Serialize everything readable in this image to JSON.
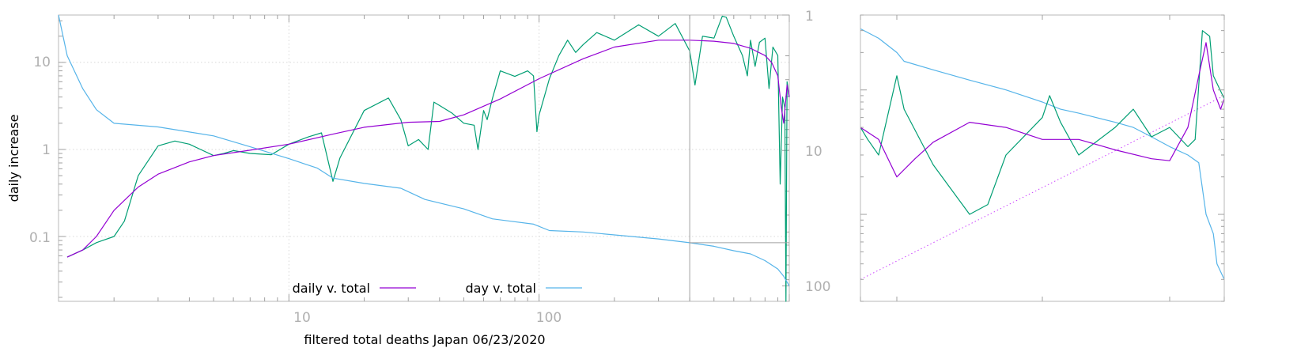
{
  "chart_data": [
    {
      "type": "line",
      "xlabel": "filtered total deaths Japan 06/23/2020",
      "ylabel": "daily increase",
      "x_scale": "log",
      "y_scale": "log",
      "y2_scale": "log",
      "y2_reversed": true,
      "xlim": [
        1.2,
        1000
      ],
      "ylim": [
        0.018,
        35
      ],
      "y2lim": [
        1,
        130
      ],
      "grid": true,
      "legend_position": "bottom-center",
      "x_tick_labels": [
        "10",
        "100"
      ],
      "y_tick_labels": [
        "0.1",
        "1",
        "10"
      ],
      "y2_tick_labels": [
        "1",
        "10",
        "100"
      ],
      "colors": {
        "daily_v_total": "#9400d3",
        "day_v_total": "#56b4e9",
        "raw_daily": "#009e73",
        "crosshair": "#a0a0a0"
      },
      "marker": {
        "x": 400,
        "y2": 48
      },
      "series": [
        {
          "name": "daily v. total",
          "axis": "y",
          "x": [
            1.3,
            1.5,
            1.7,
            2,
            2.5,
            3,
            4,
            5,
            7,
            10,
            15,
            20,
            30,
            40,
            50,
            70,
            100,
            150,
            200,
            300,
            400,
            500,
            600,
            700,
            800,
            850,
            900,
            930,
            950,
            980,
            1000
          ],
          "values": [
            0.058,
            0.07,
            0.1,
            0.2,
            0.37,
            0.52,
            0.72,
            0.85,
            0.98,
            1.15,
            1.5,
            1.8,
            2.05,
            2.1,
            2.5,
            3.8,
            6.5,
            11,
            15,
            18,
            18,
            17.5,
            16.5,
            14.5,
            12,
            10,
            7,
            3,
            2,
            5.5,
            4
          ]
        },
        {
          "name": "day v. total",
          "axis": "y2",
          "x": [
            1.2,
            1.3,
            1.5,
            1.7,
            2,
            3,
            5,
            7,
            10,
            13,
            15,
            20,
            28,
            35,
            50,
            65,
            95,
            110,
            150,
            200,
            300,
            400,
            500,
            600,
            700,
            800,
            900,
            950,
            1000
          ],
          "values": [
            1,
            2,
            3.5,
            5,
            6.3,
            6.7,
            7.8,
            9.4,
            11.5,
            13.5,
            16,
            17.5,
            19,
            23,
            27,
            32,
            35,
            39,
            40,
            42,
            45,
            48,
            51,
            55,
            58,
            65,
            75,
            85,
            100
          ]
        },
        {
          "axis": "y",
          "x": [
            1.3,
            1.5,
            1.7,
            2,
            2.2,
            2.5,
            3,
            3.5,
            4,
            5,
            5.5,
            6,
            7,
            8,
            8.5,
            10,
            12,
            13.5,
            15,
            16,
            20,
            25,
            28,
            30,
            33,
            36,
            38,
            40,
            45,
            50,
            55,
            57,
            60,
            62,
            65,
            70,
            80,
            90,
            95,
            98,
            100,
            110,
            120,
            130,
            140,
            150,
            170,
            200,
            250,
            300,
            350,
            400,
            420,
            450,
            500,
            540,
            560,
            600,
            650,
            680,
            700,
            730,
            760,
            800,
            830,
            860,
            900,
            920,
            940,
            960,
            970,
            980,
            1000
          ],
          "values": [
            0.058,
            0.07,
            0.085,
            0.1,
            0.15,
            0.5,
            1.1,
            1.25,
            1.15,
            0.85,
            0.9,
            0.97,
            0.9,
            0.88,
            0.87,
            1.15,
            1.4,
            1.55,
            0.43,
            0.8,
            2.8,
            3.9,
            2.2,
            1.1,
            1.3,
            1.0,
            3.5,
            3.2,
            2.6,
            2.0,
            1.9,
            1.0,
            2.8,
            2.2,
            3.8,
            8.0,
            6.9,
            8.0,
            7.0,
            1.6,
            2.5,
            6.5,
            12,
            18,
            13,
            16,
            22,
            18,
            27,
            20,
            28,
            13.5,
            5.5,
            20,
            19,
            34,
            33,
            20,
            12,
            7,
            18,
            9,
            17,
            19,
            5,
            15,
            12,
            0.4,
            4,
            3,
            0.018,
            6,
            4
          ]
        }
      ]
    },
    {
      "type": "line",
      "x_scale": "log",
      "y_scale": "log",
      "colors": {
        "purple": "#9400d3",
        "blue": "#56b4e9",
        "green": "#009e73",
        "dotted_fit": "#cc44ff"
      },
      "series": [
        {
          "axis": "y",
          "x": [
            0,
            0.05,
            0.1,
            0.15,
            0.2,
            0.3,
            0.4,
            0.5,
            0.6,
            0.7,
            0.8,
            0.85,
            0.9,
            0.93,
            0.95,
            0.97,
            0.99,
            1.0
          ],
          "values": [
            0.5,
            0.4,
            0.2,
            0.28,
            0.38,
            0.55,
            0.5,
            0.4,
            0.4,
            0.33,
            0.28,
            0.27,
            0.5,
            1.3,
            2.4,
            1.0,
            0.7,
            0.85
          ]
        },
        {
          "axis": "y",
          "x": [
            0,
            0.02,
            0.05,
            0.1,
            0.12,
            0.2,
            0.3,
            0.35,
            0.4,
            0.5,
            0.52,
            0.55,
            0.6,
            0.7,
            0.75,
            0.8,
            0.85,
            0.9,
            0.92,
            0.94,
            0.96,
            0.97,
            1.0
          ],
          "values": [
            0.5,
            0.4,
            0.3,
            1.3,
            0.7,
            0.25,
            0.1,
            0.12,
            0.3,
            0.6,
            0.9,
            0.55,
            0.3,
            0.5,
            0.7,
            0.42,
            0.5,
            0.35,
            0.4,
            3.0,
            2.7,
            1.3,
            0.85
          ]
        },
        {
          "axis": "y",
          "x": [
            0,
            0.05,
            0.1,
            0.12,
            0.2,
            0.3,
            0.4,
            0.5,
            0.55,
            0.6,
            0.7,
            0.75,
            0.8,
            0.85,
            0.9,
            0.93,
            0.95,
            0.97,
            0.98,
            1.0
          ],
          "values": [
            3.1,
            2.6,
            2.0,
            1.7,
            1.45,
            1.2,
            1.0,
            0.8,
            0.7,
            0.65,
            0.55,
            0.5,
            0.42,
            0.35,
            0.3,
            0.26,
            0.1,
            0.07,
            0.04,
            0.03
          ]
        },
        {
          "axis": "y",
          "style": "dotted",
          "x": [
            0,
            1.0
          ],
          "values": [
            0.03,
            0.9
          ]
        }
      ]
    }
  ]
}
